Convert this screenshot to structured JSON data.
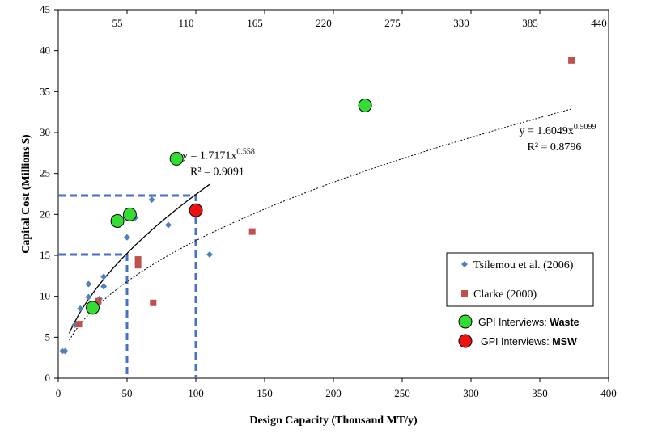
{
  "chart_data": {
    "type": "scatter",
    "xlabel": "Design Capacity (Thousand MT/y)",
    "ylabel": "Capital Cost (Millions $)",
    "xlim": [
      0,
      400
    ],
    "ylim": [
      0,
      45
    ],
    "x_ticks": [
      0,
      50,
      100,
      150,
      200,
      250,
      300,
      350,
      400
    ],
    "y_ticks": [
      0,
      5,
      10,
      15,
      20,
      25,
      30,
      35,
      40,
      45
    ],
    "secondary_x_ticks": [
      "55",
      "110",
      "165",
      "220",
      "275",
      "330",
      "385",
      "440"
    ],
    "secondary_x_tick_positions": [
      50,
      100,
      150,
      200,
      250,
      300,
      350,
      400
    ],
    "grid": false,
    "legend_position": "bottom-right",
    "series": [
      {
        "name": "Tsilemou et al. (2006)",
        "marker": "diamond",
        "color": "#4f81bd",
        "points": [
          [
            3,
            3.3
          ],
          [
            5,
            3.3
          ],
          [
            12,
            6.5
          ],
          [
            16,
            8.5
          ],
          [
            22,
            9.9
          ],
          [
            22,
            11.5
          ],
          [
            30,
            9.7
          ],
          [
            33,
            11.2
          ],
          [
            33,
            12.4
          ],
          [
            50,
            17.2
          ],
          [
            56,
            19.6
          ],
          [
            68,
            21.8
          ],
          [
            80,
            18.7
          ],
          [
            110,
            15.1
          ]
        ]
      },
      {
        "name": "Clarke (2000)",
        "marker": "square",
        "color": "#c0504d",
        "points": [
          [
            15,
            6.6
          ],
          [
            29,
            9.4
          ],
          [
            58,
            13.8
          ],
          [
            58,
            14.5
          ],
          [
            69,
            9.2
          ],
          [
            141,
            17.9
          ],
          [
            373,
            38.8
          ]
        ]
      },
      {
        "name_prefix": "GPI Interviews:",
        "name_bold": "Waste",
        "marker": "circle",
        "color": "#33dd33",
        "points": [
          [
            25,
            8.6
          ],
          [
            43,
            19.2
          ],
          [
            52,
            20.0
          ],
          [
            86,
            26.8
          ],
          [
            223,
            33.3
          ]
        ]
      },
      {
        "name_prefix": "GPI Interviews:",
        "name_bold": "MSW",
        "marker": "circle",
        "color": "#ee1111",
        "points": [
          [
            100,
            20.5
          ]
        ]
      }
    ],
    "trendlines": [
      {
        "style": "solid",
        "equation_prefix": "y = 1.7171x",
        "exponent": "0.5581",
        "r2": "R² = 0.9091",
        "a": 1.7171,
        "b": 0.5581,
        "x_range": [
          8,
          110
        ],
        "label_anchor": [
          90,
          26.8
        ]
      },
      {
        "style": "dotted",
        "equation_prefix": "y = 1.6049x",
        "exponent": "0.5099",
        "r2": "R² = 0.8796",
        "a": 1.6049,
        "b": 0.5099,
        "x_range": [
          8,
          373
        ],
        "label_anchor": [
          335,
          29.8
        ]
      }
    ],
    "reference_lines": [
      {
        "x": 50,
        "y": 15.1
      },
      {
        "x": 100,
        "y": 22.3
      }
    ]
  }
}
